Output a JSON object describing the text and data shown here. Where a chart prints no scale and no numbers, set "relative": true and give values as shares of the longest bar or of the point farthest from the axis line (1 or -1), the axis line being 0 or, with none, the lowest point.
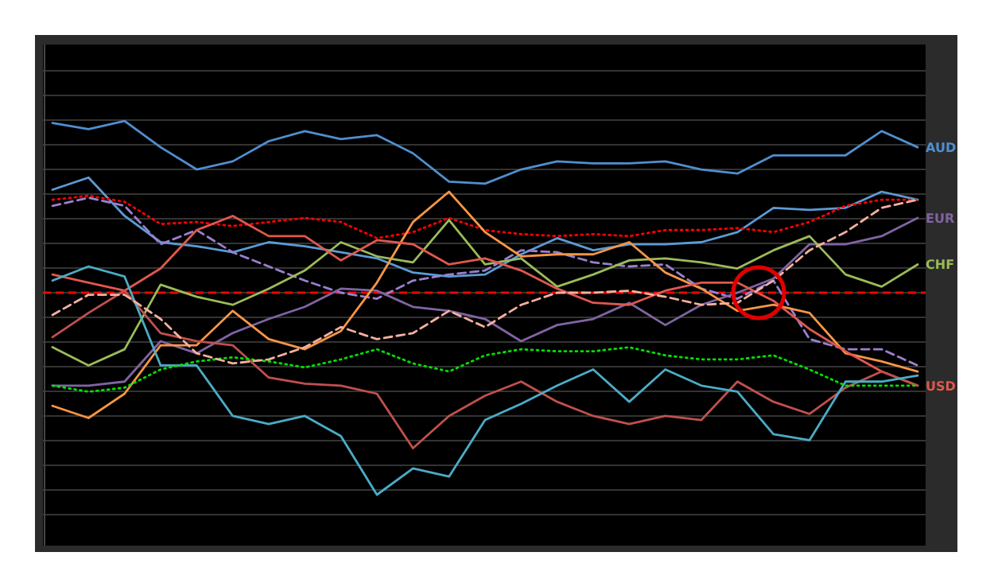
{
  "chart_data": {
    "type": "line",
    "relative": true,
    "grid": "y",
    "categories": [
      null,
      null,
      null,
      null,
      null,
      null,
      null,
      null,
      null,
      null,
      null,
      null,
      null,
      null,
      null,
      null,
      null,
      null,
      null,
      null,
      null,
      null,
      null,
      null,
      null
    ],
    "series": [
      {
        "name": "AUD",
        "color": "#4f8fcf",
        "values": [
          0.84,
          0.81,
          0.85,
          0.72,
          0.61,
          0.65,
          0.75,
          0.8,
          0.76,
          0.78,
          0.69,
          0.55,
          0.54,
          0.61,
          0.65,
          0.64,
          0.64,
          0.65,
          0.61,
          0.59,
          0.68,
          0.68,
          0.68,
          0.8,
          0.72
        ]
      },
      {
        "color": "#5b9bd5",
        "values": [
          0.51,
          0.57,
          0.38,
          0.25,
          0.23,
          0.2,
          0.25,
          0.23,
          0.2,
          0.17,
          0.1,
          0.08,
          0.09,
          0.19,
          0.27,
          0.21,
          0.24,
          0.24,
          0.25,
          0.3,
          0.42,
          0.41,
          0.42,
          0.5,
          0.46
        ]
      },
      {
        "color": "#ff0000",
        "line_style": "dotted",
        "values": [
          0.46,
          0.48,
          0.45,
          0.34,
          0.35,
          0.33,
          0.35,
          0.37,
          0.35,
          0.27,
          0.3,
          0.37,
          0.31,
          0.29,
          0.28,
          0.29,
          0.28,
          0.31,
          0.31,
          0.32,
          0.3,
          0.35,
          0.43,
          0.46,
          0.46
        ]
      },
      {
        "color": "#9b7fd0",
        "line_style": "dashed",
        "values": [
          0.43,
          0.47,
          0.43,
          0.24,
          0.31,
          0.2,
          0.13,
          0.06,
          0,
          -0.03,
          0.06,
          0.09,
          0.11,
          0.21,
          0.2,
          0.15,
          0.13,
          0.14,
          0.02,
          -0.03,
          0.06,
          -0.23,
          -0.28,
          -0.28,
          -0.36
        ]
      },
      {
        "name": "EUR",
        "color": "#8064a2",
        "values": [
          -0.46,
          -0.46,
          -0.44,
          -0.24,
          -0.3,
          -0.2,
          -0.13,
          -0.07,
          0.02,
          0.01,
          -0.07,
          -0.09,
          -0.13,
          -0.24,
          -0.16,
          -0.13,
          -0.05,
          -0.16,
          -0.06,
          0,
          0.07,
          0.24,
          0.24,
          0.28,
          0.37
        ]
      },
      {
        "name": "CHF",
        "color": "#9bbb59",
        "values": [
          -0.27,
          -0.36,
          -0.28,
          0.04,
          -0.02,
          -0.06,
          0.02,
          0.11,
          0.25,
          0.18,
          0.15,
          0.36,
          0.14,
          0.17,
          0.03,
          0.09,
          0.16,
          0.17,
          0.15,
          0.12,
          0.21,
          0.28,
          0.09,
          0.03,
          0.14
        ]
      },
      {
        "color": "#f79646",
        "values": [
          -0.56,
          -0.62,
          -0.5,
          -0.26,
          -0.26,
          -0.09,
          -0.23,
          -0.28,
          -0.19,
          0.05,
          0.35,
          0.5,
          0.3,
          0.18,
          0.19,
          0.19,
          0.25,
          0.1,
          0.02,
          -0.09,
          -0.06,
          -0.1,
          -0.3,
          -0.34,
          -0.39
        ]
      },
      {
        "name": "USD",
        "color": "#e0584e",
        "values": [
          0.09,
          0.05,
          0.01,
          0.12,
          0.31,
          0.38,
          0.28,
          0.28,
          0.16,
          0.26,
          0.24,
          0.14,
          0.17,
          0.11,
          0.02,
          -0.05,
          -0.06,
          0.01,
          0.05,
          0.05,
          -0.04,
          -0.18,
          -0.29,
          -0.39,
          -0.46
        ]
      },
      {
        "color": "#c0504d",
        "values": [
          -0.22,
          -0.1,
          0.01,
          -0.2,
          -0.24,
          -0.26,
          -0.42,
          -0.45,
          -0.46,
          -0.5,
          -0.77,
          -0.61,
          -0.51,
          -0.44,
          -0.54,
          -0.61,
          -0.65,
          -0.61,
          -0.63,
          -0.44,
          -0.54,
          -0.6,
          -0.47,
          -0.39,
          -0.46
        ]
      },
      {
        "color": "#4bacc6",
        "values": [
          0.06,
          0.13,
          0.08,
          -0.36,
          -0.36,
          -0.61,
          -0.65,
          -0.61,
          -0.71,
          -1,
          -0.87,
          -0.91,
          -0.63,
          -0.55,
          -0.46,
          -0.38,
          -0.54,
          -0.38,
          -0.46,
          -0.49,
          -0.7,
          -0.73,
          -0.44,
          -0.44,
          -0.41
        ]
      },
      {
        "color": "#00e000",
        "line_style": "dotted",
        "values": [
          -0.46,
          -0.49,
          -0.47,
          -0.38,
          -0.34,
          -0.32,
          -0.34,
          -0.37,
          -0.33,
          -0.28,
          -0.35,
          -0.39,
          -0.31,
          -0.28,
          -0.29,
          -0.29,
          -0.27,
          -0.31,
          -0.33,
          -0.33,
          -0.31,
          -0.38,
          -0.46,
          -0.46,
          -0.46
        ]
      },
      {
        "color": "#f4b0a0",
        "line_style": "dashed",
        "values": [
          -0.11,
          -0.01,
          -0.01,
          -0.13,
          -0.3,
          -0.35,
          -0.33,
          -0.27,
          -0.17,
          -0.23,
          -0.2,
          -0.09,
          -0.17,
          -0.06,
          0,
          0,
          0.01,
          -0.02,
          -0.06,
          -0.05,
          0.06,
          0.21,
          0.3,
          0.42,
          0.46
        ]
      }
    ],
    "ref_lines": [
      {
        "axis": "y",
        "value": 0,
        "color": "#ff0000",
        "line_style": "dashed"
      }
    ]
  }
}
